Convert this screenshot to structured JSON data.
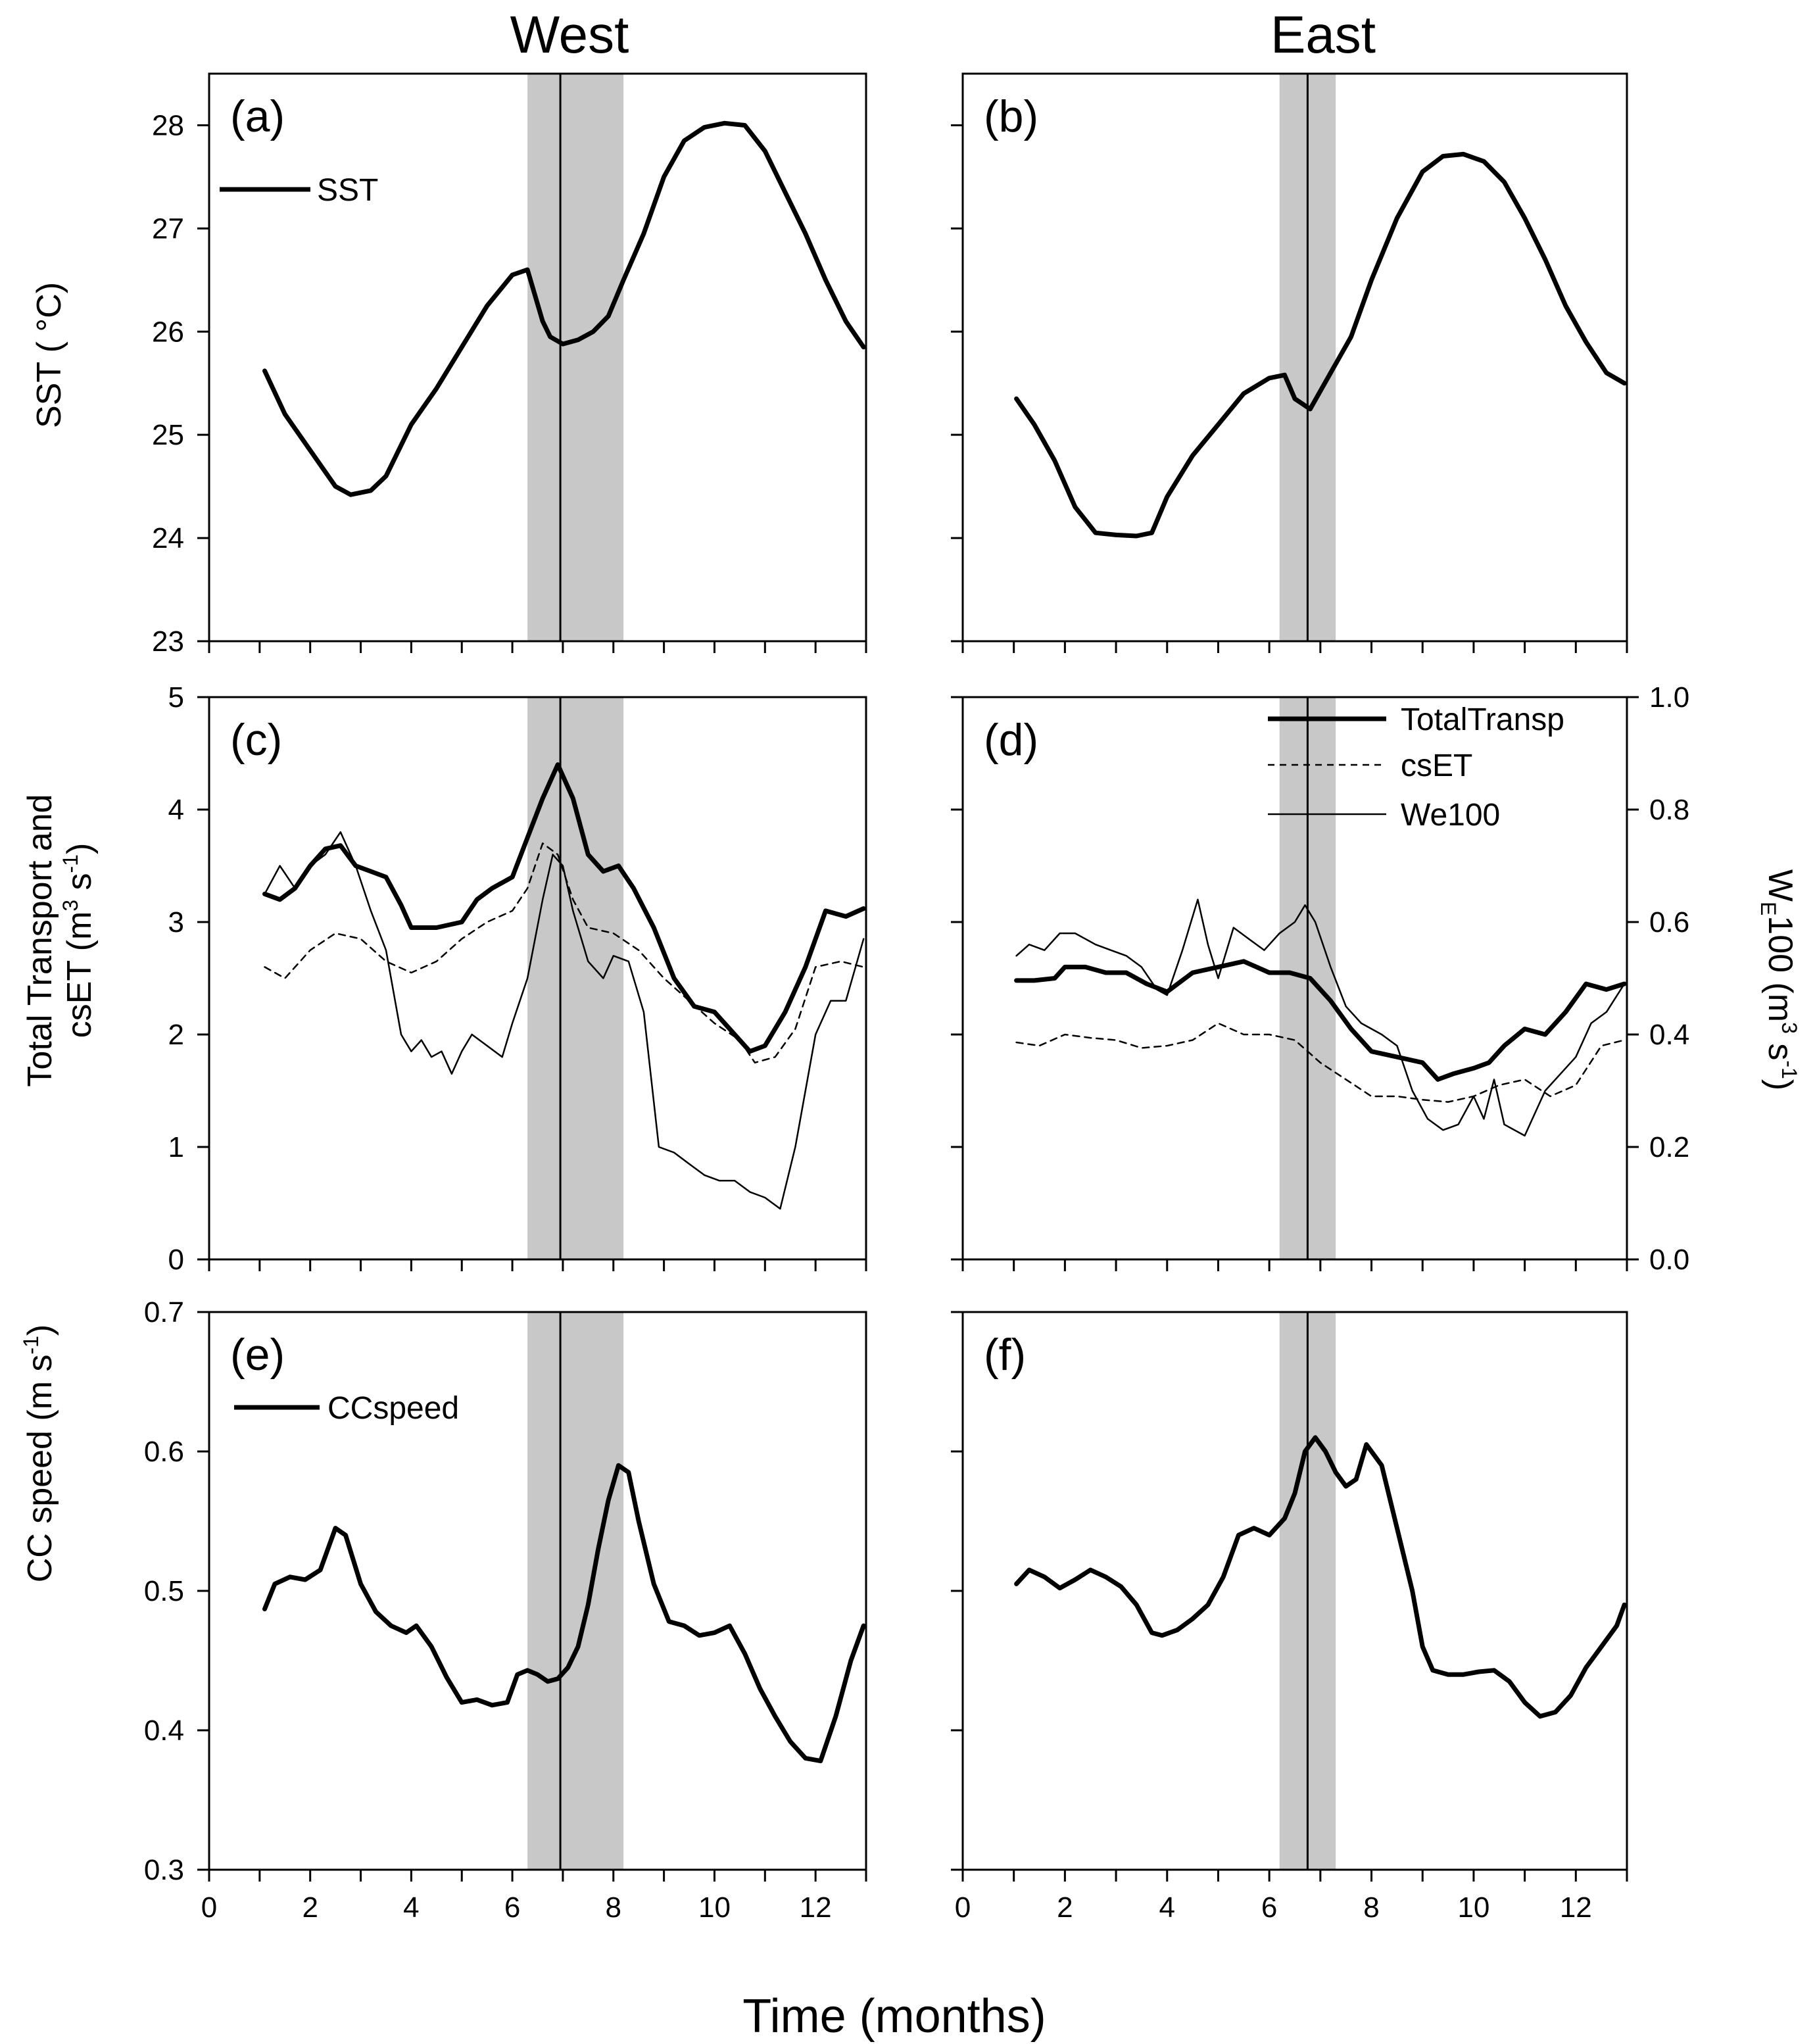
{
  "figure": {
    "col_titles": {
      "west": "West",
      "east": "East"
    },
    "xlabel": "Time (months)",
    "x_ticks": [
      "0",
      "2",
      "4",
      "6",
      "8",
      "10",
      "12"
    ],
    "ylabels": {
      "sst": "SST ( °C)",
      "transport_line1": "Total Transport and",
      "transport_line2_prefix": "csET (m",
      "transport_line2_sup1": "3",
      "transport_line2_mid": " s",
      "transport_line2_sup2": "-1",
      "transport_line2_suffix": ")",
      "ccspeed_prefix": "CC speed (m s",
      "ccspeed_sup": "-1",
      "ccspeed_suffix": ")",
      "we_prefix": "W",
      "we_sub": "E",
      "we_mid": "100 (m",
      "we_sup1": "3",
      "we_mid2": " s",
      "we_sup2": "-1",
      "we_suffix": ")"
    },
    "panel_labels": [
      "(a)",
      "(b)",
      "(c)",
      "(d)",
      "(e)",
      "(f)"
    ],
    "legends": {
      "sst": "SST",
      "total": "TotalTransp",
      "cset": "csET",
      "we": "We100",
      "cc": "CCspeed"
    },
    "sst_ticks": [
      "23",
      "24",
      "25",
      "26",
      "27",
      "28"
    ],
    "transport_ticks": [
      "0",
      "1",
      "2",
      "3",
      "4",
      "5"
    ],
    "cc_ticks": [
      "0.3",
      "0.4",
      "0.5",
      "0.6",
      "0.7"
    ],
    "we_ticks": [
      "0.0",
      "0.2",
      "0.4",
      "0.6",
      "0.8",
      "1.0"
    ]
  },
  "chart_data": [
    {
      "panel": "(a)",
      "type": "line",
      "region": "West",
      "xlim": [
        0,
        13
      ],
      "ylim": [
        23,
        28.5
      ],
      "shaded_band": [
        6.3,
        8.2
      ],
      "vline": 6.95,
      "series": [
        {
          "name": "SST",
          "style": "thick",
          "x": [
            1.1,
            1.5,
            2.0,
            2.5,
            2.8,
            3.2,
            3.5,
            4.0,
            4.5,
            5.0,
            5.5,
            6.0,
            6.3,
            6.6,
            6.75,
            7.0,
            7.3,
            7.6,
            7.9,
            8.2,
            8.6,
            9.0,
            9.4,
            9.8,
            10.2,
            10.6,
            11.0,
            11.4,
            11.8,
            12.2,
            12.6,
            12.95
          ],
          "y": [
            25.62,
            25.2,
            24.85,
            24.5,
            24.42,
            24.46,
            24.6,
            25.1,
            25.45,
            25.85,
            26.25,
            26.55,
            26.6,
            26.1,
            25.95,
            25.88,
            25.92,
            26.0,
            26.15,
            26.5,
            26.95,
            27.5,
            27.85,
            27.98,
            28.02,
            28.0,
            27.75,
            27.35,
            26.95,
            26.5,
            26.1,
            25.85
          ]
        }
      ]
    },
    {
      "panel": "(b)",
      "type": "line",
      "region": "East",
      "xlim": [
        0,
        13
      ],
      "ylim": [
        23,
        28.5
      ],
      "shaded_band": [
        6.2,
        7.3
      ],
      "vline": 6.75,
      "series": [
        {
          "name": "SST",
          "style": "thick",
          "x": [
            1.05,
            1.4,
            1.8,
            2.2,
            2.6,
            3.0,
            3.4,
            3.7,
            4.0,
            4.5,
            5.0,
            5.5,
            6.0,
            6.3,
            6.5,
            6.8,
            7.2,
            7.6,
            8.0,
            8.5,
            9.0,
            9.4,
            9.8,
            10.2,
            10.6,
            11.0,
            11.4,
            11.8,
            12.2,
            12.6,
            12.95
          ],
          "y": [
            25.35,
            25.1,
            24.75,
            24.3,
            24.05,
            24.03,
            24.02,
            24.05,
            24.4,
            24.8,
            25.1,
            25.4,
            25.55,
            25.58,
            25.35,
            25.25,
            25.6,
            25.95,
            26.5,
            27.1,
            27.55,
            27.7,
            27.72,
            27.65,
            27.45,
            27.1,
            26.7,
            26.25,
            25.9,
            25.6,
            25.5
          ]
        }
      ]
    },
    {
      "panel": "(c)",
      "type": "line",
      "region": "West",
      "xlim": [
        0,
        13
      ],
      "ylim": [
        0,
        5
      ],
      "y2lim": [
        0,
        1.0
      ],
      "shaded_band": [
        6.3,
        8.2
      ],
      "vline": 6.95,
      "series": [
        {
          "name": "TotalTransp",
          "axis": "left",
          "style": "thick",
          "x": [
            1.1,
            1.4,
            1.7,
            2.0,
            2.3,
            2.6,
            2.9,
            3.2,
            3.5,
            3.8,
            4.0,
            4.5,
            5.0,
            5.3,
            5.6,
            6.0,
            6.3,
            6.6,
            6.9,
            7.2,
            7.5,
            7.8,
            8.1,
            8.4,
            8.8,
            9.2,
            9.6,
            10.0,
            10.4,
            10.7,
            11.0,
            11.4,
            11.8,
            12.2,
            12.6,
            12.95
          ],
          "y": [
            3.25,
            3.2,
            3.3,
            3.5,
            3.65,
            3.68,
            3.5,
            3.45,
            3.4,
            3.15,
            2.95,
            2.95,
            3.0,
            3.2,
            3.3,
            3.4,
            3.75,
            4.1,
            4.4,
            4.1,
            3.6,
            3.45,
            3.5,
            3.3,
            2.95,
            2.5,
            2.25,
            2.2,
            2.0,
            1.85,
            1.9,
            2.2,
            2.6,
            3.1,
            3.05,
            3.12
          ]
        },
        {
          "name": "csET",
          "axis": "left",
          "style": "dashed",
          "x": [
            1.1,
            1.5,
            2.0,
            2.5,
            3.0,
            3.5,
            4.0,
            4.5,
            5.0,
            5.5,
            6.0,
            6.3,
            6.6,
            6.9,
            7.2,
            7.5,
            8.0,
            8.5,
            9.0,
            9.5,
            10.0,
            10.5,
            10.8,
            11.2,
            11.6,
            12.0,
            12.5,
            12.95
          ],
          "y": [
            2.6,
            2.5,
            2.75,
            2.9,
            2.85,
            2.65,
            2.55,
            2.65,
            2.85,
            3.0,
            3.1,
            3.3,
            3.7,
            3.6,
            3.2,
            2.95,
            2.9,
            2.75,
            2.5,
            2.3,
            2.1,
            1.95,
            1.75,
            1.8,
            2.05,
            2.6,
            2.65,
            2.6
          ]
        },
        {
          "name": "We100",
          "axis": "right",
          "style": "thin",
          "x": [
            1.1,
            1.4,
            1.7,
            2.0,
            2.3,
            2.6,
            2.9,
            3.2,
            3.5,
            3.8,
            4.0,
            4.2,
            4.4,
            4.6,
            4.8,
            5.0,
            5.2,
            5.5,
            5.8,
            6.0,
            6.3,
            6.6,
            6.8,
            7.0,
            7.2,
            7.5,
            7.8,
            8.0,
            8.3,
            8.6,
            8.9,
            9.2,
            9.5,
            9.8,
            10.1,
            10.4,
            10.7,
            11.0,
            11.3,
            11.6,
            12.0,
            12.3,
            12.6,
            12.95
          ],
          "y": [
            0.65,
            0.7,
            0.66,
            0.7,
            0.72,
            0.76,
            0.7,
            0.62,
            0.55,
            0.4,
            0.37,
            0.39,
            0.36,
            0.37,
            0.33,
            0.37,
            0.4,
            0.38,
            0.36,
            0.42,
            0.5,
            0.64,
            0.72,
            0.7,
            0.62,
            0.53,
            0.5,
            0.54,
            0.53,
            0.44,
            0.2,
            0.19,
            0.17,
            0.15,
            0.14,
            0.14,
            0.12,
            0.11,
            0.09,
            0.2,
            0.4,
            0.46,
            0.46,
            0.57
          ]
        }
      ]
    },
    {
      "panel": "(d)",
      "type": "line",
      "region": "East",
      "xlim": [
        0,
        13
      ],
      "ylim": [
        0,
        5
      ],
      "y2lim": [
        0,
        1.0
      ],
      "shaded_band": [
        6.2,
        7.3
      ],
      "vline": 6.75,
      "series": [
        {
          "name": "TotalTransp",
          "axis": "left",
          "style": "thick",
          "x": [
            1.05,
            1.4,
            1.8,
            2.0,
            2.4,
            2.8,
            3.2,
            3.6,
            4.0,
            4.5,
            5.0,
            5.5,
            6.0,
            6.4,
            6.8,
            7.2,
            7.6,
            8.0,
            8.5,
            9.0,
            9.3,
            9.6,
            10.0,
            10.3,
            10.6,
            11.0,
            11.4,
            11.8,
            12.2,
            12.6,
            12.95
          ],
          "y": [
            2.48,
            2.48,
            2.5,
            2.6,
            2.6,
            2.55,
            2.55,
            2.45,
            2.38,
            2.55,
            2.6,
            2.65,
            2.55,
            2.55,
            2.5,
            2.3,
            2.05,
            1.85,
            1.8,
            1.75,
            1.6,
            1.65,
            1.7,
            1.75,
            1.9,
            2.05,
            2.0,
            2.2,
            2.45,
            2.4,
            2.45
          ]
        },
        {
          "name": "csET",
          "axis": "left",
          "style": "dashed",
          "x": [
            1.05,
            1.5,
            2.0,
            2.5,
            3.0,
            3.5,
            4.0,
            4.5,
            5.0,
            5.5,
            6.0,
            6.5,
            7.0,
            7.5,
            8.0,
            8.5,
            9.0,
            9.5,
            10.0,
            10.5,
            11.0,
            11.5,
            12.0,
            12.5,
            12.95
          ],
          "y": [
            1.93,
            1.9,
            2.0,
            1.97,
            1.95,
            1.88,
            1.9,
            1.95,
            2.1,
            2.0,
            2.0,
            1.95,
            1.75,
            1.6,
            1.45,
            1.45,
            1.42,
            1.4,
            1.45,
            1.55,
            1.6,
            1.45,
            1.55,
            1.9,
            1.95
          ]
        },
        {
          "name": "We100",
          "axis": "right",
          "style": "thin",
          "x": [
            1.05,
            1.3,
            1.6,
            1.9,
            2.2,
            2.6,
            2.9,
            3.2,
            3.5,
            3.8,
            4.0,
            4.3,
            4.6,
            4.8,
            5.0,
            5.3,
            5.6,
            5.9,
            6.2,
            6.5,
            6.7,
            6.9,
            7.2,
            7.5,
            7.8,
            8.2,
            8.5,
            8.8,
            9.1,
            9.4,
            9.7,
            10.0,
            10.2,
            10.4,
            10.6,
            11.0,
            11.4,
            11.7,
            12.0,
            12.3,
            12.6,
            12.95
          ],
          "y": [
            0.54,
            0.56,
            0.55,
            0.58,
            0.58,
            0.56,
            0.55,
            0.54,
            0.52,
            0.48,
            0.47,
            0.55,
            0.64,
            0.56,
            0.5,
            0.59,
            0.57,
            0.55,
            0.58,
            0.6,
            0.63,
            0.6,
            0.52,
            0.45,
            0.42,
            0.4,
            0.38,
            0.3,
            0.25,
            0.23,
            0.24,
            0.29,
            0.25,
            0.32,
            0.24,
            0.22,
            0.3,
            0.33,
            0.36,
            0.42,
            0.44,
            0.49
          ]
        }
      ]
    },
    {
      "panel": "(e)",
      "type": "line",
      "region": "West",
      "xlim": [
        0,
        13
      ],
      "ylim": [
        0.3,
        0.7
      ],
      "shaded_band": [
        6.3,
        8.2
      ],
      "vline": 6.95,
      "series": [
        {
          "name": "CCspeed",
          "style": "thick",
          "x": [
            1.1,
            1.3,
            1.6,
            1.9,
            2.2,
            2.5,
            2.7,
            3.0,
            3.3,
            3.6,
            3.9,
            4.1,
            4.4,
            4.7,
            5.0,
            5.3,
            5.6,
            5.9,
            6.1,
            6.3,
            6.5,
            6.7,
            6.9,
            7.1,
            7.3,
            7.5,
            7.7,
            7.9,
            8.1,
            8.3,
            8.5,
            8.8,
            9.1,
            9.4,
            9.7,
            10.0,
            10.3,
            10.6,
            10.9,
            11.2,
            11.5,
            11.8,
            12.1,
            12.4,
            12.7,
            12.95
          ],
          "y": [
            0.487,
            0.505,
            0.51,
            0.508,
            0.515,
            0.545,
            0.54,
            0.505,
            0.485,
            0.475,
            0.47,
            0.475,
            0.46,
            0.438,
            0.42,
            0.422,
            0.418,
            0.42,
            0.44,
            0.443,
            0.44,
            0.435,
            0.437,
            0.445,
            0.46,
            0.49,
            0.53,
            0.565,
            0.59,
            0.585,
            0.55,
            0.505,
            0.478,
            0.475,
            0.468,
            0.47,
            0.475,
            0.455,
            0.43,
            0.41,
            0.392,
            0.38,
            0.378,
            0.41,
            0.45,
            0.475
          ]
        }
      ]
    },
    {
      "panel": "(f)",
      "type": "line",
      "region": "East",
      "xlim": [
        0,
        13
      ],
      "ylim": [
        0.3,
        0.7
      ],
      "shaded_band": [
        6.2,
        7.3
      ],
      "vline": 6.75,
      "series": [
        {
          "name": "CCspeed",
          "style": "thick",
          "x": [
            1.05,
            1.3,
            1.6,
            1.9,
            2.2,
            2.5,
            2.8,
            3.1,
            3.4,
            3.7,
            3.9,
            4.2,
            4.5,
            4.8,
            5.1,
            5.4,
            5.7,
            6.0,
            6.3,
            6.5,
            6.7,
            6.9,
            7.1,
            7.3,
            7.5,
            7.7,
            7.9,
            8.2,
            8.5,
            8.8,
            9.0,
            9.2,
            9.5,
            9.8,
            10.1,
            10.4,
            10.7,
            11.0,
            11.3,
            11.6,
            11.9,
            12.2,
            12.5,
            12.8,
            12.95
          ],
          "y": [
            0.505,
            0.515,
            0.51,
            0.502,
            0.508,
            0.515,
            0.51,
            0.503,
            0.49,
            0.47,
            0.468,
            0.472,
            0.48,
            0.49,
            0.51,
            0.54,
            0.545,
            0.54,
            0.552,
            0.57,
            0.6,
            0.61,
            0.6,
            0.585,
            0.575,
            0.58,
            0.605,
            0.59,
            0.545,
            0.5,
            0.46,
            0.443,
            0.44,
            0.44,
            0.442,
            0.443,
            0.435,
            0.42,
            0.41,
            0.413,
            0.425,
            0.445,
            0.46,
            0.475,
            0.49
          ]
        }
      ]
    }
  ]
}
